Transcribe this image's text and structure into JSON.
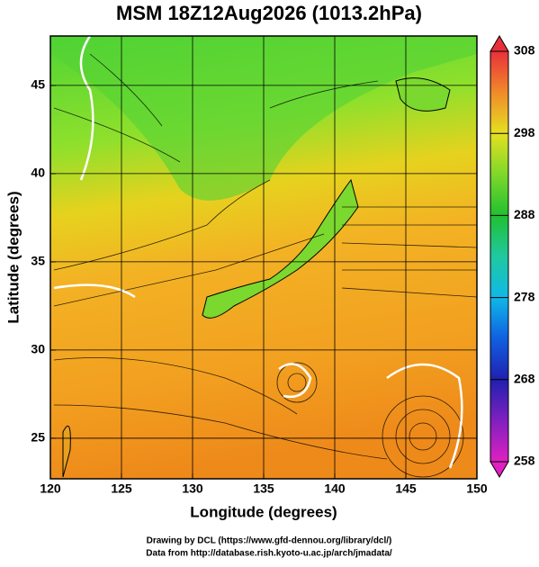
{
  "title": "MSM 18Z12Aug2026 (1013.2hPa)",
  "map": {
    "x_label": "Longitude (degrees)",
    "y_label": "Latitude  (degrees)",
    "xlim": [
      120,
      150
    ],
    "ylim": [
      22.7,
      47.8
    ],
    "xticks": [
      120,
      125,
      130,
      135,
      140,
      145,
      150
    ],
    "yticks": [
      25,
      30,
      35,
      40,
      45
    ]
  },
  "colorbar": {
    "clim": [
      258,
      308
    ],
    "ticks": [
      258,
      268,
      278,
      288,
      298,
      308
    ]
  },
  "footer": [
    "Drawing by DCL (https://www.gfd-dennou.org/library/dcl/)",
    "Data from http://database.rish.kyoto-u.ac.jp/arch/jmadata/"
  ]
}
